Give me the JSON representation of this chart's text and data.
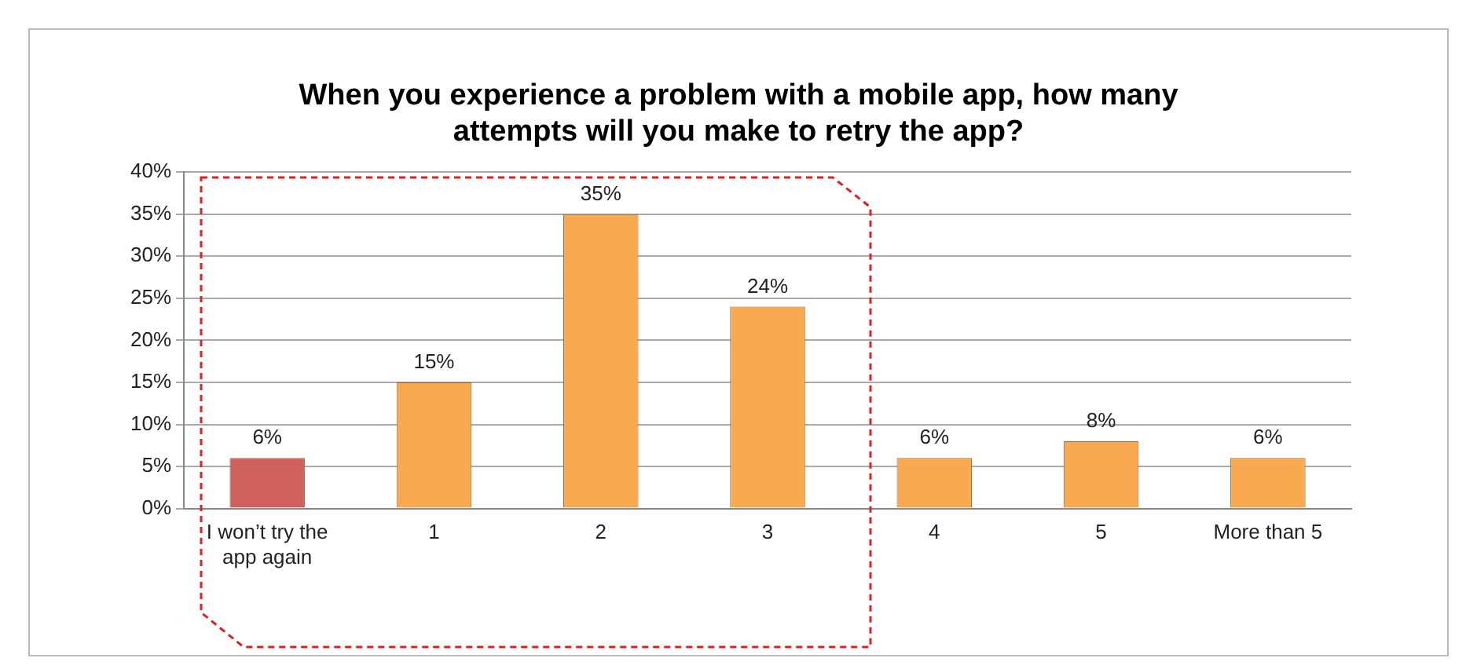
{
  "chart_data": {
    "type": "bar",
    "title": "When you experience a problem with a mobile app, how many attempts will you make to retry the app?",
    "categories": [
      "I won’t try the app again",
      "1",
      "2",
      "3",
      "4",
      "5",
      "More than 5"
    ],
    "values": [
      6,
      15,
      35,
      24,
      6,
      8,
      6
    ],
    "value_labels": [
      "6%",
      "15%",
      "35%",
      "24%",
      "6%",
      "8%",
      "6%"
    ],
    "colors": [
      "#d0605e",
      "#f9a94f",
      "#f9a94f",
      "#f9a94f",
      "#f9a94f",
      "#f9a94f",
      "#f9a94f"
    ],
    "ylim": [
      0,
      40
    ],
    "yticks": [
      {
        "value": 0,
        "label": "0%"
      },
      {
        "value": 5,
        "label": "5%"
      },
      {
        "value": 10,
        "label": "10%"
      },
      {
        "value": 15,
        "label": "15%"
      },
      {
        "value": 20,
        "label": "20%"
      },
      {
        "value": 25,
        "label": "25%"
      },
      {
        "value": 30,
        "label": "30%"
      },
      {
        "value": 35,
        "label": "35%"
      },
      {
        "value": 40,
        "label": "40%"
      }
    ],
    "grid": "y",
    "legend": false
  }
}
